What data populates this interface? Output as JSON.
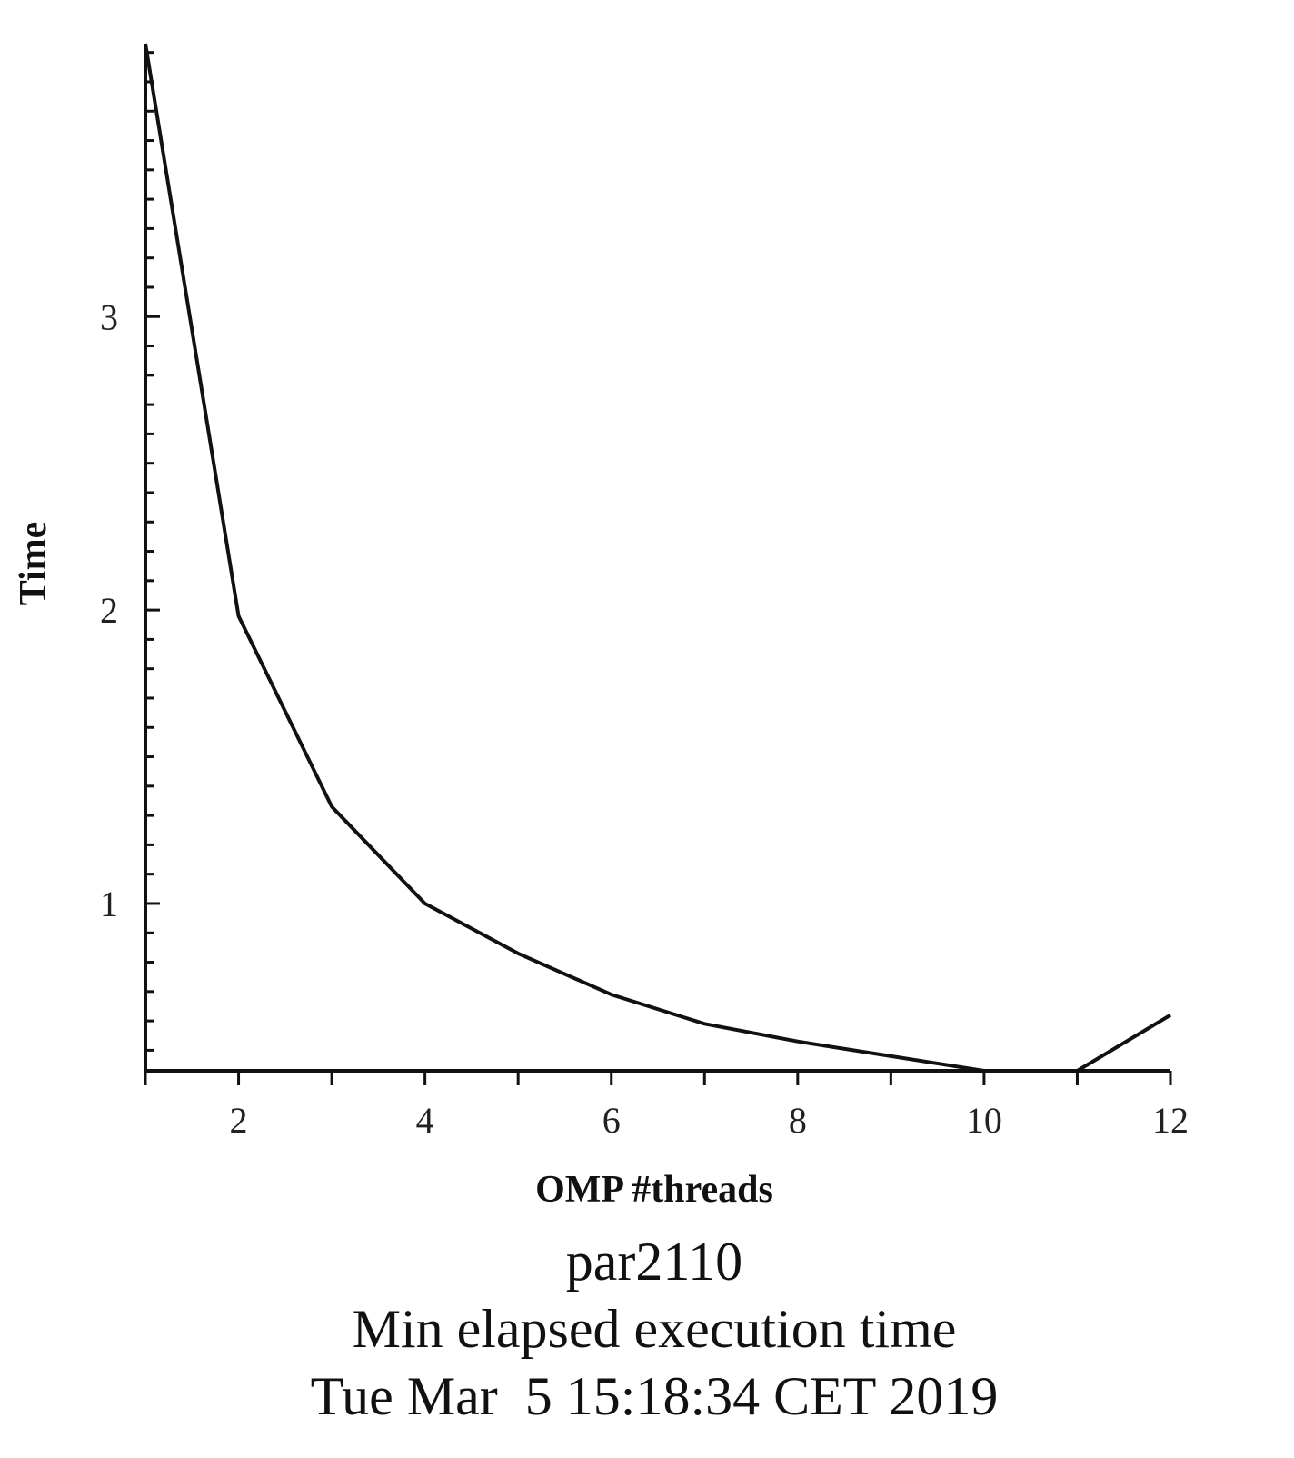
{
  "chart_data": {
    "type": "line",
    "xlabel": "OMP #threads",
    "ylabel": "Time",
    "captions": {
      "name": "par2110",
      "description": "Min elapsed execution time",
      "timestamp": "Tue Mar  5 15:18:34 CET 2019"
    },
    "xlim": [
      1,
      12
    ],
    "ylim": [
      0.43,
      3.93
    ],
    "x_ticks": [
      2,
      4,
      6,
      8,
      10,
      12
    ],
    "y_ticks": [
      1,
      2,
      3
    ],
    "x_minor_step": 1,
    "y_minor_step": 0.1,
    "grid": false,
    "legend": "none",
    "colors": {
      "line": "#111111",
      "axis": "#111111"
    },
    "series": [
      {
        "x": [
          1,
          2,
          3,
          4,
          5,
          6,
          7,
          8,
          9,
          10,
          11,
          12
        ],
        "values": [
          3.93,
          1.98,
          1.33,
          1.0,
          0.83,
          0.69,
          0.59,
          0.53,
          0.48,
          0.43,
          0.43,
          0.62
        ]
      }
    ]
  }
}
